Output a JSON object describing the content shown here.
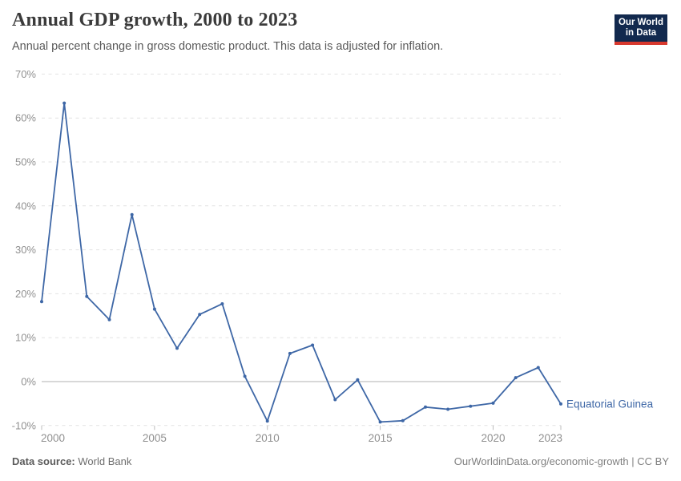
{
  "header": {
    "title": "Annual GDP growth, 2000 to 2023",
    "subtitle": "Annual percent change in gross domestic product. This data is adjusted for inflation."
  },
  "logo": {
    "line1": "Our World",
    "line2": "in Data"
  },
  "chart_data": {
    "type": "line",
    "title": "Annual GDP growth, 2000 to 2023",
    "xlabel": "",
    "ylabel": "",
    "x": [
      2000,
      2001,
      2002,
      2003,
      2004,
      2005,
      2006,
      2007,
      2008,
      2009,
      2010,
      2011,
      2012,
      2013,
      2014,
      2015,
      2016,
      2017,
      2018,
      2019,
      2020,
      2021,
      2022,
      2023
    ],
    "series": [
      {
        "name": "Equatorial Guinea",
        "values": [
          18.2,
          63.4,
          19.4,
          14.1,
          38.0,
          16.5,
          7.6,
          15.3,
          17.7,
          1.2,
          -9.0,
          6.4,
          8.3,
          -4.1,
          0.4,
          -9.2,
          -8.9,
          -5.8,
          -6.3,
          -5.6,
          -4.9,
          0.9,
          3.2,
          -5.1
        ]
      }
    ],
    "ylim": [
      -10,
      70
    ],
    "yticks": {
      "values": [
        -10,
        0,
        10,
        20,
        30,
        40,
        50,
        60,
        70
      ],
      "labels": [
        "-10%",
        "0%",
        "10%",
        "20%",
        "30%",
        "40%",
        "50%",
        "60%",
        "70%"
      ]
    },
    "xticks": {
      "values": [
        2000,
        2005,
        2010,
        2015,
        2020,
        2023
      ],
      "labels": [
        "2000",
        "2005",
        "2010",
        "2015",
        "2020",
        "2023"
      ]
    },
    "grid": "horizontal dashed, solid line at zero",
    "legend_position": "end-of-line entity label"
  },
  "footer": {
    "source_label": "Data source:",
    "source_value": "World Bank",
    "link": "OurWorldinData.org/economic-growth | CC BY"
  },
  "colors": {
    "line": "#3e67a6",
    "entity_label": "#3e67a6",
    "grid": "#e2e2e2",
    "zero_line": "#b0b0b0",
    "tick_mark": "#bdbdbd",
    "axis_text": "#909090",
    "title": "#3b3b3b",
    "subtitle": "#5a5a5a",
    "logo_bg": "#12294e",
    "logo_bar": "#d8392e"
  }
}
